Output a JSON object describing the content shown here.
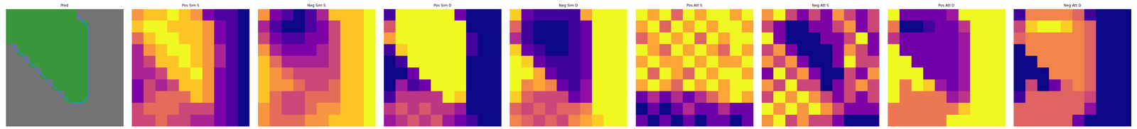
{
  "chart_data": [
    {
      "type": "mask",
      "title": "Pred",
      "color": "#2ca02c",
      "tick_labels": false,
      "cells": [
        [
          1,
          1,
          1,
          1,
          1,
          1,
          0,
          0,
          0,
          0
        ],
        [
          1,
          1,
          1,
          1,
          1,
          1,
          1,
          0,
          0,
          0
        ],
        [
          1,
          1,
          1,
          1,
          1,
          1,
          1,
          0,
          0,
          0
        ],
        [
          0,
          1,
          1,
          1,
          1,
          1,
          1,
          0,
          0,
          0
        ],
        [
          0,
          0,
          1,
          1,
          1,
          1,
          1,
          0,
          0,
          0
        ],
        [
          0,
          0,
          0,
          1,
          1,
          1,
          1,
          0,
          0,
          0
        ],
        [
          0,
          0,
          0,
          0,
          1,
          1,
          1,
          0,
          0,
          0
        ],
        [
          0,
          0,
          0,
          0,
          0,
          1,
          1,
          0,
          0,
          0
        ],
        [
          0,
          0,
          0,
          0,
          0,
          0,
          0,
          0,
          0,
          0
        ],
        [
          0,
          0,
          0,
          0,
          0,
          0,
          0,
          0,
          0,
          0
        ]
      ]
    },
    {
      "type": "heatmap",
      "title": "Pos Sim S",
      "color": "plasma",
      "tick_labels": false,
      "cells": [
        [
          7,
          8,
          8,
          9,
          8,
          7,
          3,
          2,
          2,
          1
        ],
        [
          8,
          9,
          9,
          8,
          8,
          8,
          7,
          3,
          2,
          1
        ],
        [
          6,
          8,
          9,
          9,
          8,
          8,
          7,
          3,
          2,
          1
        ],
        [
          4,
          7,
          8,
          9,
          9,
          8,
          7,
          4,
          2,
          1
        ],
        [
          4,
          5,
          8,
          8,
          9,
          8,
          7,
          4,
          2,
          1
        ],
        [
          4,
          4,
          5,
          8,
          8,
          9,
          7,
          3,
          2,
          1
        ],
        [
          3,
          5,
          4,
          5,
          8,
          8,
          7,
          3,
          2,
          1
        ],
        [
          3,
          5,
          6,
          6,
          6,
          8,
          7,
          3,
          2,
          1
        ],
        [
          5,
          6,
          6,
          6,
          5,
          5,
          5,
          3,
          2,
          1
        ],
        [
          5,
          5,
          6,
          5,
          5,
          4,
          4,
          3,
          2,
          1
        ]
      ]
    },
    {
      "type": "heatmap",
      "title": "Neg Sim S",
      "color": "plasma",
      "tick_labels": false,
      "cells": [
        [
          8,
          4,
          3,
          2,
          3,
          5,
          9,
          9,
          9,
          10
        ],
        [
          5,
          3,
          2,
          2,
          3,
          4,
          6,
          9,
          9,
          10
        ],
        [
          6,
          4,
          3,
          3,
          4,
          4,
          6,
          9,
          9,
          10
        ],
        [
          8,
          5,
          4,
          4,
          4,
          5,
          6,
          9,
          9,
          10
        ],
        [
          9,
          7,
          5,
          5,
          5,
          5,
          6,
          9,
          9,
          10
        ],
        [
          9,
          8,
          7,
          6,
          6,
          6,
          6,
          9,
          9,
          10
        ],
        [
          9,
          8,
          8,
          7,
          6,
          6,
          7,
          9,
          9,
          10
        ],
        [
          9,
          7,
          6,
          6,
          7,
          7,
          7,
          9,
          9,
          10
        ],
        [
          8,
          7,
          6,
          6,
          7,
          8,
          8,
          9,
          9,
          10
        ],
        [
          8,
          7,
          7,
          7,
          8,
          8,
          9,
          9,
          9,
          10
        ]
      ]
    },
    {
      "type": "heatmap",
      "title": "Pos Sim D",
      "color": "plasma",
      "tick_labels": false,
      "cells": [
        [
          2,
          10,
          10,
          10,
          10,
          10,
          3,
          1,
          1,
          1
        ],
        [
          6,
          10,
          10,
          10,
          10,
          10,
          10,
          1,
          1,
          1
        ],
        [
          8,
          10,
          10,
          10,
          10,
          10,
          10,
          2,
          1,
          1
        ],
        [
          2,
          9,
          10,
          10,
          10,
          10,
          10,
          2,
          1,
          1
        ],
        [
          1,
          2,
          10,
          10,
          10,
          10,
          10,
          1,
          1,
          1
        ],
        [
          1,
          1,
          3,
          10,
          10,
          10,
          10,
          1,
          1,
          1
        ],
        [
          1,
          4,
          2,
          3,
          10,
          10,
          10,
          1,
          1,
          1
        ],
        [
          2,
          5,
          5,
          5,
          5,
          10,
          9,
          1,
          1,
          1
        ],
        [
          5,
          6,
          5,
          6,
          5,
          5,
          4,
          1,
          1,
          1
        ],
        [
          4,
          5,
          6,
          5,
          6,
          4,
          3,
          2,
          1,
          1
        ]
      ]
    },
    {
      "type": "heatmap",
      "title": "Neg Sim D",
      "color": "plasma",
      "tick_labels": false,
      "cells": [
        [
          9,
          2,
          1,
          1,
          1,
          1,
          8,
          10,
          10,
          10
        ],
        [
          6,
          1,
          0,
          0,
          0,
          1,
          2,
          10,
          10,
          10
        ],
        [
          4,
          1,
          0,
          0,
          0,
          1,
          2,
          10,
          10,
          10
        ],
        [
          9,
          2,
          1,
          0,
          0,
          1,
          2,
          10,
          10,
          10
        ],
        [
          10,
          9,
          2,
          1,
          1,
          1,
          2,
          10,
          10,
          10
        ],
        [
          10,
          10,
          8,
          2,
          1,
          1,
          2,
          10,
          10,
          10
        ],
        [
          10,
          7,
          8,
          7,
          2,
          1,
          3,
          10,
          10,
          10
        ],
        [
          9,
          6,
          5,
          5,
          5,
          2,
          3,
          10,
          10,
          10
        ],
        [
          6,
          5,
          6,
          5,
          6,
          6,
          7,
          10,
          10,
          10
        ],
        [
          7,
          6,
          5,
          6,
          5,
          7,
          8,
          9,
          10,
          10
        ]
      ]
    },
    {
      "type": "heatmap",
      "title": "Pos Att S",
      "color": "plasma",
      "tick_labels": false,
      "cells": [
        [
          9,
          8,
          9,
          7,
          9,
          8,
          9,
          9,
          8,
          9
        ],
        [
          8,
          9,
          7,
          9,
          8,
          9,
          8,
          9,
          9,
          8
        ],
        [
          7,
          8,
          9,
          8,
          9,
          7,
          9,
          8,
          9,
          9
        ],
        [
          9,
          8,
          7,
          9,
          8,
          9,
          8,
          7,
          9,
          8
        ],
        [
          8,
          9,
          8,
          8,
          9,
          8,
          9,
          8,
          8,
          9
        ],
        [
          9,
          7,
          9,
          8,
          7,
          9,
          8,
          9,
          9,
          8
        ],
        [
          8,
          9,
          8,
          7,
          9,
          8,
          9,
          8,
          9,
          9
        ],
        [
          5,
          6,
          5,
          6,
          5,
          6,
          7,
          8,
          9,
          8
        ],
        [
          4,
          5,
          4,
          5,
          6,
          5,
          5,
          6,
          5,
          5
        ],
        [
          5,
          4,
          5,
          4,
          5,
          4,
          5,
          5,
          4,
          5
        ]
      ]
    },
    {
      "type": "heatmap",
      "title": "Neg Att S",
      "color": "plasma",
      "tick_labels": false,
      "cells": [
        [
          4,
          5,
          3,
          2,
          3,
          2,
          4,
          3,
          2,
          3
        ],
        [
          3,
          2,
          1,
          1,
          2,
          2,
          3,
          4,
          2,
          3
        ],
        [
          5,
          2,
          1,
          1,
          1,
          2,
          2,
          3,
          5,
          2
        ],
        [
          3,
          4,
          2,
          1,
          1,
          1,
          2,
          4,
          3,
          2
        ],
        [
          4,
          3,
          4,
          2,
          1,
          1,
          2,
          5,
          3,
          3
        ],
        [
          2,
          5,
          3,
          4,
          2,
          1,
          1,
          3,
          2,
          4
        ],
        [
          4,
          3,
          5,
          3,
          3,
          1,
          2,
          3,
          4,
          3
        ],
        [
          3,
          5,
          4,
          5,
          4,
          3,
          2,
          3,
          2,
          3
        ],
        [
          5,
          4,
          5,
          4,
          5,
          4,
          3,
          2,
          2,
          2
        ],
        [
          4,
          5,
          3,
          4,
          3,
          3,
          2,
          1,
          1,
          1
        ]
      ]
    },
    {
      "type": "heatmap",
      "title": "Pos Att D",
      "color": "plasma",
      "tick_labels": false,
      "cells": [
        [
          10,
          3,
          3,
          3,
          3,
          4,
          10,
          10,
          10,
          10
        ],
        [
          7,
          1,
          1,
          2,
          3,
          3,
          5,
          10,
          10,
          10
        ],
        [
          5,
          3,
          3,
          3,
          3,
          3,
          4,
          10,
          10,
          10
        ],
        [
          10,
          3,
          3,
          3,
          3,
          3,
          4,
          10,
          10,
          10
        ],
        [
          10,
          10,
          3,
          3,
          3,
          3,
          4,
          10,
          10,
          10
        ],
        [
          10,
          10,
          10,
          3,
          3,
          3,
          4,
          10,
          10,
          10
        ],
        [
          10,
          7,
          10,
          9,
          4,
          3,
          4,
          10,
          10,
          10
        ],
        [
          10,
          7,
          7,
          7,
          7,
          4,
          5,
          10,
          10,
          10
        ],
        [
          7,
          7,
          7,
          7,
          7,
          7,
          9,
          10,
          10,
          10
        ],
        [
          7,
          7,
          7,
          7,
          7,
          10,
          10,
          10,
          10,
          10
        ]
      ]
    },
    {
      "type": "heatmap",
      "title": "Neg Att D",
      "color": "plasma",
      "tick_labels": false,
      "cells": [
        [
          1,
          7,
          7,
          7,
          7,
          6,
          1,
          0,
          0,
          0
        ],
        [
          5,
          9,
          10,
          10,
          9,
          7,
          6,
          0,
          0,
          0
        ],
        [
          6,
          7,
          7,
          7,
          7,
          7,
          6,
          0,
          0,
          0
        ],
        [
          0,
          7,
          7,
          7,
          7,
          7,
          6,
          0,
          0,
          0
        ],
        [
          0,
          0,
          7,
          7,
          7,
          7,
          6,
          0,
          0,
          0
        ],
        [
          0,
          0,
          0,
          7,
          7,
          7,
          6,
          0,
          0,
          0
        ],
        [
          0,
          5,
          0,
          2,
          6,
          7,
          6,
          0,
          0,
          0
        ],
        [
          1,
          6,
          6,
          6,
          6,
          6,
          5,
          0,
          0,
          0
        ],
        [
          6,
          6,
          6,
          6,
          6,
          6,
          3,
          0,
          0,
          0
        ],
        [
          6,
          6,
          6,
          6,
          6,
          2,
          0,
          0,
          0,
          0
        ]
      ]
    }
  ]
}
